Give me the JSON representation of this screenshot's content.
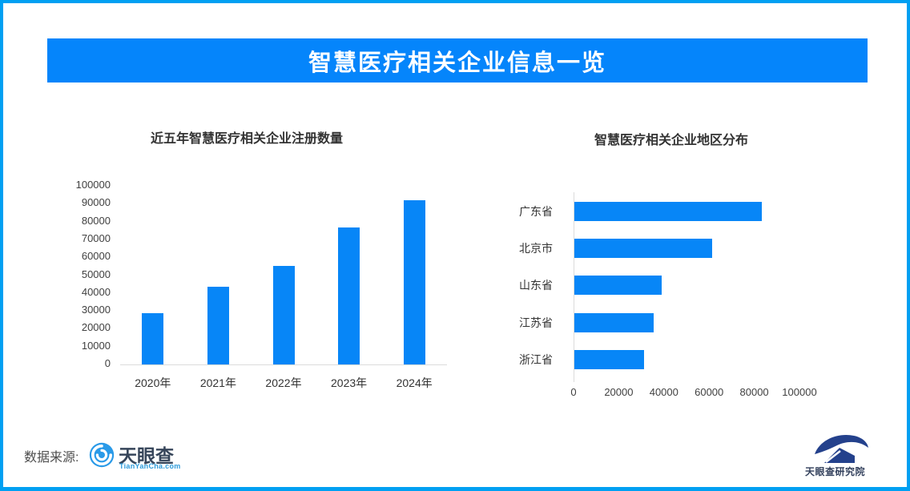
{
  "banner": {
    "title": "智慧医疗相关企业信息一览"
  },
  "colors": {
    "border": "#00a0f2",
    "banner": "#0585fb",
    "bar": "#0786f7",
    "axis_line": "#dbdbdb",
    "title_text": "#333333",
    "axis_text": "#404040",
    "logo_blue": "#2a9ae8",
    "logo_navy": "#24418c"
  },
  "chart_data": [
    {
      "type": "bar",
      "orientation": "vertical",
      "title": "近五年智慧医疗相关企业注册数量",
      "categories": [
        "2020年",
        "2021年",
        "2022年",
        "2023年",
        "2024年"
      ],
      "values": [
        28500,
        43500,
        55000,
        76500,
        91500
      ],
      "xlabel": "",
      "ylabel": "",
      "ylim": [
        0,
        100000
      ],
      "ytick_step": 10000,
      "grid": false,
      "legend": false
    },
    {
      "type": "bar",
      "orientation": "horizontal",
      "title": "智慧医疗相关企业地区分布",
      "categories": [
        "广东省",
        "北京市",
        "山东省",
        "江苏省",
        "浙江省"
      ],
      "values": [
        83000,
        61000,
        38500,
        35000,
        31000
      ],
      "xlabel": "",
      "ylabel": "",
      "xlim": [
        0,
        100000
      ],
      "xtick_step": 20000,
      "grid": false,
      "legend": false
    }
  ],
  "footer": {
    "source_label": "数据来源:",
    "tianyancha": {
      "name": "天眼查",
      "domain": "TianYanCha.com"
    },
    "research_institute": "天眼查研究院"
  }
}
